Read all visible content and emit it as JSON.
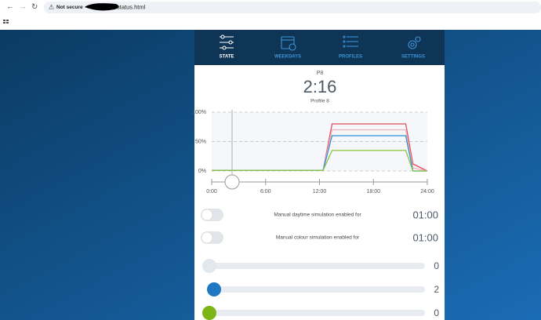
{
  "browser": {
    "security": "Not secure",
    "url": "status.html"
  },
  "nav": {
    "tabs": [
      "STATE",
      "WEEKDAYS",
      "PROFILES",
      "SETTINGS"
    ],
    "active": 0
  },
  "status": {
    "profile_code": "P8",
    "time": "2:16",
    "profile_name": "Profile 8"
  },
  "chart": {
    "type": "line",
    "x": [
      0,
      12.4,
      13.4,
      21.6,
      22.4,
      24
    ],
    "xlim": [
      0,
      24
    ],
    "xticks": [
      {
        "value": 0,
        "label": "0:00"
      },
      {
        "value": 6,
        "label": "6:00"
      },
      {
        "value": 12,
        "label": "12:00"
      },
      {
        "value": 18,
        "label": "18:00"
      },
      {
        "value": 24,
        "label": "24:00"
      }
    ],
    "ylim": [
      0,
      100
    ],
    "yticks": [
      {
        "value": 0,
        "label": "0%"
      },
      {
        "value": 50,
        "label": "50%"
      },
      {
        "value": 100,
        "label": "100%"
      }
    ],
    "grid": true,
    "series": [
      {
        "color": "#e0505a",
        "values": [
          1,
          1,
          80,
          80,
          12,
          0
        ]
      },
      {
        "color": "#f0b4b8",
        "values": [
          1,
          1,
          70,
          70,
          5,
          0
        ]
      },
      {
        "color": "#2f8fd8",
        "values": [
          1,
          1,
          60,
          60,
          0,
          0
        ]
      },
      {
        "color": "#8cc63f",
        "values": [
          1,
          1,
          35,
          35,
          0,
          0
        ]
      }
    ]
  },
  "toggles": [
    {
      "label": "Manual daytime simulation enabled for",
      "duration": "01:00",
      "on": false
    },
    {
      "label": "Manual colour simulation enabled for",
      "duration": "01:00",
      "on": false
    }
  ],
  "sliders": [
    {
      "value": 0,
      "color": "#e3e8ee"
    },
    {
      "value": 2,
      "color": "#1f78c1"
    },
    {
      "value": 0,
      "color": "#7cb518"
    }
  ]
}
